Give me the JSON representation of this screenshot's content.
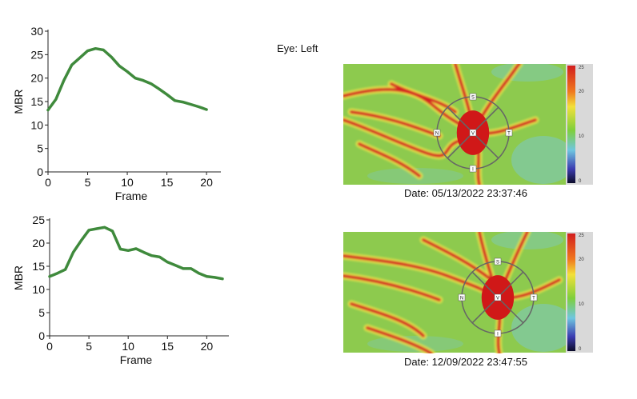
{
  "eye_label": "Eye: Left",
  "maps": [
    {
      "date": "Date: 05/13/2022 23:37:46",
      "scale_labels": [
        "25",
        "20",
        "10",
        "0"
      ],
      "markers": [
        "S",
        "N",
        "V",
        "T",
        "I"
      ]
    },
    {
      "date": "Date: 12/09/2022 23:47:55",
      "scale_labels": [
        "25",
        "20",
        "10",
        "0"
      ],
      "markers": [
        "S",
        "N",
        "V",
        "T",
        "I"
      ]
    }
  ],
  "chart_data": [
    {
      "type": "line",
      "title": "",
      "xlabel": "Frame",
      "ylabel": "MBR",
      "xlim": [
        0,
        21
      ],
      "ylim": [
        0,
        30
      ],
      "xticks": [
        0,
        5,
        10,
        15,
        20
      ],
      "yticks": [
        0,
        5,
        10,
        15,
        20,
        25,
        30
      ],
      "color": "#3f8a3c",
      "series": [
        {
          "x": [
            0,
            1,
            2,
            3,
            4,
            5,
            6,
            7,
            8,
            9,
            10,
            11,
            12,
            13,
            14,
            15,
            16,
            17,
            18,
            19,
            20
          ],
          "y": [
            13.2,
            15.5,
            19.5,
            22.8,
            24.3,
            25.8,
            26.3,
            26.0,
            24.5,
            22.6,
            21.4,
            20.0,
            19.5,
            18.8,
            17.7,
            16.5,
            15.2,
            14.9,
            14.4,
            13.9,
            13.3
          ]
        }
      ]
    },
    {
      "type": "line",
      "title": "",
      "xlabel": "Frame",
      "ylabel": "MBR",
      "xlim": [
        0,
        22
      ],
      "ylim": [
        0,
        25
      ],
      "xticks": [
        0,
        5,
        10,
        15,
        20
      ],
      "yticks": [
        0,
        5,
        10,
        15,
        20,
        25
      ],
      "color": "#3f8a3c",
      "series": [
        {
          "x": [
            0,
            1,
            2,
            3,
            4,
            5,
            6,
            7,
            8,
            9,
            10,
            11,
            12,
            13,
            14,
            15,
            16,
            17,
            18,
            19,
            20,
            21,
            22
          ],
          "y": [
            12.8,
            13.5,
            14.3,
            18.0,
            20.5,
            22.8,
            23.1,
            23.4,
            22.6,
            18.7,
            18.4,
            18.8,
            18.0,
            17.3,
            17.0,
            15.9,
            15.2,
            14.5,
            14.5,
            13.5,
            12.8,
            12.6,
            12.3
          ]
        }
      ]
    }
  ]
}
